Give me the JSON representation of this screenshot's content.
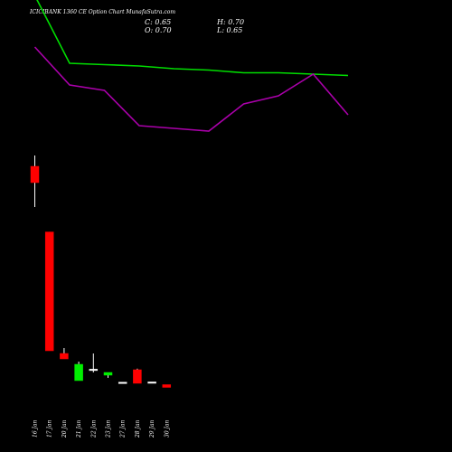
{
  "header": {
    "title": "ICICIBANK 1360 CE Option  Chart MunafaSutra.com",
    "c_label": "C: 0.65",
    "h_label": "H: 0.70",
    "o_label": "O: 0.70",
    "l_label": "L: 0.65"
  },
  "chart_data": {
    "type": "candlestick",
    "title": "ICICIBANK 1360 CE Option  Chart MunafaSutra.com",
    "categories": [
      "16 Jan",
      "17 Jan",
      "20 Jan",
      "21 Jan",
      "22 Jan",
      "23 Jan",
      "27 Jan",
      "28 Jan",
      "29 Jan",
      "30 Jan"
    ],
    "candles": [
      {
        "date": "16 Jan",
        "open": 32.0,
        "high": 36.0,
        "low": 17.0,
        "close": 26.0,
        "color": "red"
      },
      {
        "date": "17 Jan",
        "open": 7.8,
        "high": 7.8,
        "low": -36.0,
        "close": -36.0,
        "color": "red"
      },
      {
        "date": "20 Jan",
        "open": -37.0,
        "high": -35.0,
        "low": -39.0,
        "close": -39.0,
        "color": "red"
      },
      {
        "date": "21 Jan",
        "open": -47.0,
        "high": -40.0,
        "low": -47.0,
        "close": -41.0,
        "color": "green"
      },
      {
        "date": "22 Jan",
        "open": -43.2,
        "high": -37.0,
        "low": -44.0,
        "close": -42.8,
        "color": "white"
      },
      {
        "date": "23 Jan",
        "open": -45.0,
        "high": -44.0,
        "low": -46.0,
        "close": -44.0,
        "color": "green"
      },
      {
        "date": "27 Jan",
        "open": -48.0,
        "high": -48.0,
        "low": -48.0,
        "close": -47.6,
        "color": "white"
      },
      {
        "date": "28 Jan",
        "open": -43.0,
        "high": -42.6,
        "low": -48.0,
        "close": -48.0,
        "color": "red"
      },
      {
        "date": "29 Jan",
        "open": -48.0,
        "high": -48.0,
        "low": -48.0,
        "close": -47.5,
        "color": "white"
      },
      {
        "date": "30 Jan",
        "open": -48.5,
        "high": -48.5,
        "low": -49.5,
        "close": -49.5,
        "color": "red"
      }
    ],
    "series": [
      {
        "x": [
          0,
          1,
          2,
          3,
          4,
          5,
          6,
          7,
          8,
          9,
          10
        ],
        "values": [
          95,
          95,
          70,
          69.5,
          69,
          68,
          67.5,
          66.5,
          66.5,
          66,
          65.5
        ]
      },
      {
        "x": [
          1,
          2,
          3,
          4,
          5,
          6,
          7,
          8,
          9,
          10
        ],
        "values": [
          76,
          62,
          60,
          47,
          46,
          45,
          55,
          58,
          66,
          51
        ]
      }
    ],
    "colors": {
      "green_line": "#00dd00",
      "purple_line": "#aa00aa",
      "red_candle": "#ff0000",
      "green_candle": "#00ee00",
      "wick": "#ffffff"
    },
    "grid": false
  }
}
